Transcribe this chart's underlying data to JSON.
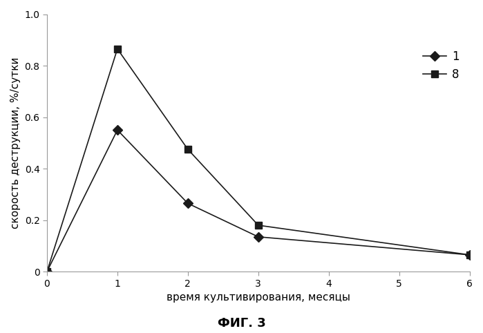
{
  "series1": {
    "label": "1",
    "x": [
      0,
      1,
      2,
      3,
      6
    ],
    "y": [
      0,
      0.55,
      0.265,
      0.135,
      0.065
    ],
    "marker": "D",
    "color": "#1a1a1a",
    "markersize": 7,
    "linewidth": 1.2
  },
  "series2": {
    "label": "8",
    "x": [
      0,
      1,
      2,
      3,
      6
    ],
    "y": [
      0,
      0.865,
      0.475,
      0.18,
      0.065
    ],
    "marker": "s",
    "color": "#1a1a1a",
    "markersize": 7,
    "linewidth": 1.2
  },
  "xlabel": "время культивирования, месяцы",
  "ylabel": "скорость деструкции, %/сутки",
  "caption": "ФИГ. 3",
  "xlim": [
    0,
    6
  ],
  "ylim": [
    0,
    1
  ],
  "xticks": [
    0,
    1,
    2,
    3,
    4,
    5,
    6
  ],
  "yticks": [
    0.0,
    0.2,
    0.4,
    0.6,
    0.8,
    1.0
  ],
  "background_color": "#ffffff"
}
